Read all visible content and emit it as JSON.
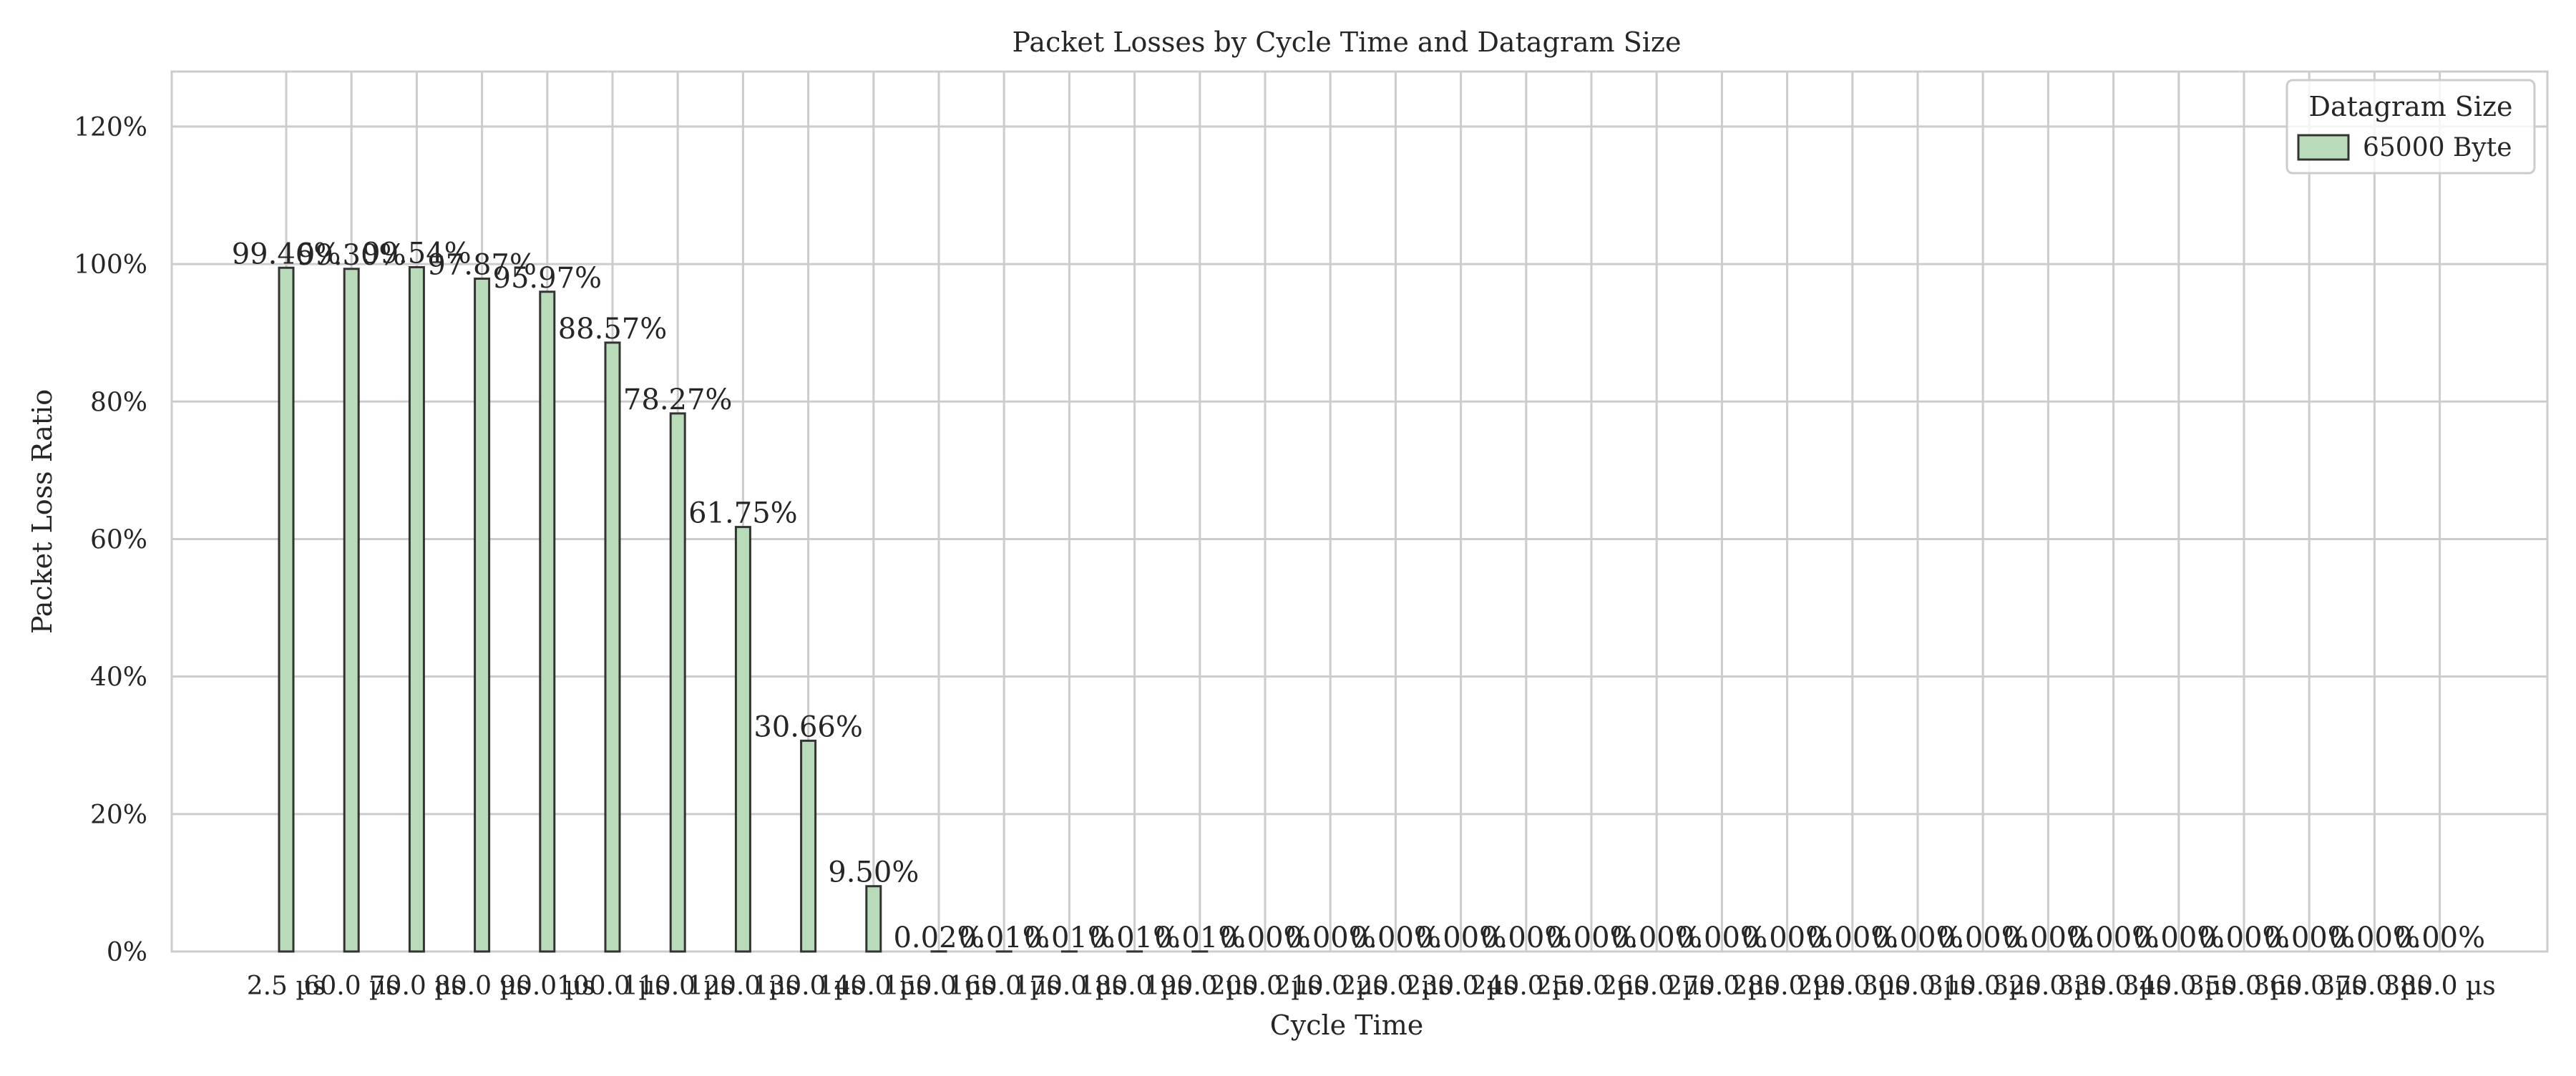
{
  "chart_data": {
    "type": "bar",
    "title": "Packet Losses by Cycle Time and Datagram Size",
    "xlabel": "Cycle Time",
    "ylabel": "Packet Loss Ratio",
    "ylim": [
      0,
      1.28
    ],
    "yticks": [
      0,
      0.2,
      0.4,
      0.6,
      0.8,
      1.0,
      1.2
    ],
    "ytick_labels": [
      "0%",
      "20%",
      "40%",
      "60%",
      "80%",
      "100%",
      "120%"
    ],
    "grid": true,
    "legend": {
      "title": "Datagram Size",
      "position": "top-right"
    },
    "categories": [
      "2.5 µs",
      "60.0 µs",
      "70.0 µs",
      "80.0 µs",
      "90.0 µs",
      "100.0 µs",
      "110.0 µs",
      "120.0 µs",
      "130.0 µs",
      "140.0 µs",
      "150.0 µs",
      "160.0 µs",
      "170.0 µs",
      "180.0 µs",
      "190.0 µs",
      "200.0 µs",
      "210.0 µs",
      "220.0 µs",
      "230.0 µs",
      "240.0 µs",
      "250.0 µs",
      "260.0 µs",
      "270.0 µs",
      "280.0 µs",
      "290.0 µs",
      "300.0 µs",
      "310.0 µs",
      "320.0 µs",
      "330.0 µs",
      "340.0 µs",
      "350.0 µs",
      "360.0 µs",
      "370.0 µs",
      "380.0 µs"
    ],
    "series": [
      {
        "name": "65000 Byte",
        "color": "#b9dbb9",
        "values": [
          0.9946,
          0.993,
          0.9954,
          0.9787,
          0.9597,
          0.8857,
          0.7827,
          0.6175,
          0.3066,
          0.095,
          0.0002,
          0.0001,
          0.0001,
          0.0001,
          0.0001,
          0,
          0,
          0,
          0,
          0,
          0,
          0,
          0,
          0,
          0,
          0,
          0,
          0,
          0,
          0,
          0,
          0,
          0,
          0
        ],
        "labels": [
          "99.46%",
          "99.30%",
          "99.54%",
          "97.87%",
          "95.97%",
          "88.57%",
          "78.27%",
          "61.75%",
          "30.66%",
          "9.50%",
          "0.02%",
          "0.01%",
          "0.01%",
          "0.01%",
          "0.01%",
          "0.00%",
          "0.00%",
          "0.00%",
          "0.00%",
          "0.00%",
          "0.00%",
          "0.00%",
          "0.00%",
          "0.00%",
          "0.00%",
          "0.00%",
          "0.00%",
          "0.00%",
          "0.00%",
          "0.00%",
          "0.00%",
          "0.00%",
          "0.00%",
          "0.00%"
        ]
      }
    ]
  }
}
